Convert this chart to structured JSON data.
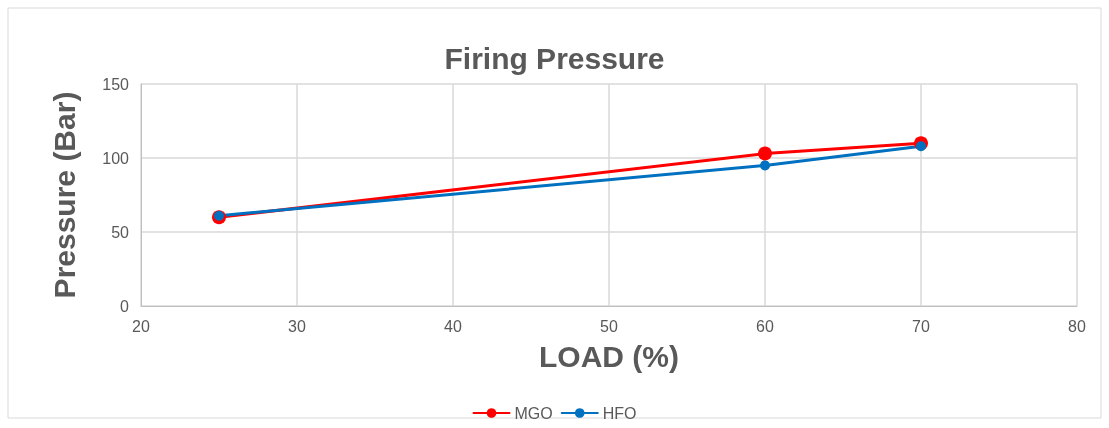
{
  "chart_data": {
    "type": "line",
    "title": "Firing Pressure",
    "xlabel": "LOAD (%)",
    "ylabel": "Pressure (Bar)",
    "x": [
      25,
      60,
      70
    ],
    "series": [
      {
        "name": "MGO",
        "color": "#ff0000",
        "values": [
          60,
          103,
          110
        ]
      },
      {
        "name": "HFO",
        "color": "#0070c0",
        "values": [
          61,
          95,
          108
        ]
      }
    ],
    "xlim": [
      20,
      80
    ],
    "xticks": [
      20,
      30,
      40,
      50,
      60,
      70,
      80
    ],
    "ylim": [
      0,
      150
    ],
    "yticks": [
      0,
      50,
      100,
      150
    ],
    "grid": true,
    "legend": "bottom",
    "marker": "circle",
    "line_style": "solid"
  }
}
